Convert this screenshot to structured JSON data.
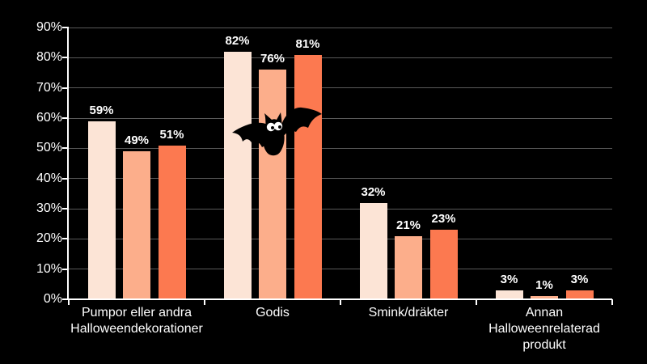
{
  "page": {
    "background_color": "#000000"
  },
  "chart_data": {
    "type": "bar",
    "title": "",
    "categories": [
      "Pumpor eller andra Halloweendekorationer",
      "Godis",
      "Smink/dräkter",
      "Annan Halloweenrelaterad produkt"
    ],
    "categories_display_lines": [
      [
        "Pumpor eller andra",
        "Halloweendekorationer"
      ],
      [
        "Godis"
      ],
      [
        "Smink/dräkter"
      ],
      [
        "Annan",
        "Halloweenrelaterad",
        "produkt"
      ]
    ],
    "series": [
      {
        "color": "#fce4d6",
        "values": [
          59,
          82,
          32,
          3
        ],
        "labels": [
          "59%",
          "82%",
          "32%",
          "3%"
        ]
      },
      {
        "color": "#fcae8b",
        "values": [
          49,
          76,
          21,
          1
        ],
        "labels": [
          "49%",
          "76%",
          "21%",
          "1%"
        ]
      },
      {
        "color": "#fc7950",
        "values": [
          51,
          81,
          23,
          3
        ],
        "labels": [
          "51%",
          "81%",
          "23%",
          "3%"
        ]
      }
    ],
    "ylim": [
      0,
      90
    ],
    "ytick_step": 10,
    "ytick_labels": [
      "0%",
      "10%",
      "20%",
      "30%",
      "40%",
      "50%",
      "60%",
      "70%",
      "80%",
      "90%"
    ],
    "grid": true,
    "legend": "none",
    "xlabel": "",
    "ylabel": "",
    "colors": {
      "background": "#000000",
      "gridline": "#595959",
      "axis": "#ffffff",
      "tick_label": "#ffffff",
      "category_label": "#ffffff",
      "value_label": "#ffffff"
    },
    "decorations": [
      {
        "name": "bat-clipart",
        "fill": "#000000",
        "eye_color": "#ffffff",
        "position": "over Godis bars"
      }
    ]
  }
}
